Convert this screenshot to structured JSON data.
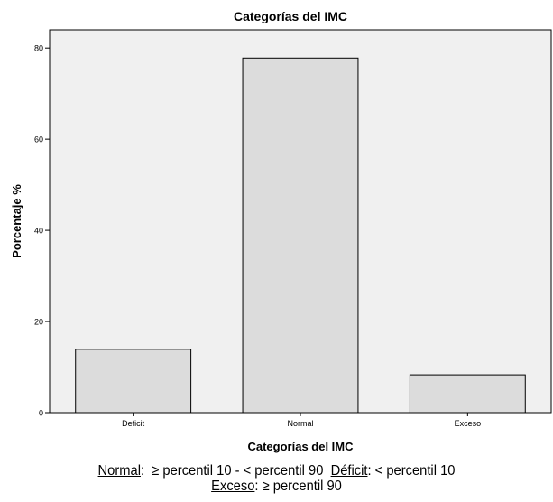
{
  "chart_data": {
    "type": "bar",
    "title": "Categorías del IMC",
    "xlabel": "Categorías del IMC",
    "ylabel": "Porcentaje %",
    "categories": [
      "Deficit",
      "Normal",
      "Exceso"
    ],
    "values": [
      13.9,
      77.8,
      8.3
    ],
    "ylim": [
      0,
      84
    ],
    "yticks": [
      0,
      20,
      40,
      60,
      80
    ],
    "grid": false,
    "colors": {
      "plot_bg": "#f0f0f0",
      "bar_fill": "#dcdcdc",
      "bar_stroke": "#000000"
    }
  },
  "caption": {
    "line1": [
      {
        "term": "Normal",
        "text": ":  ≥ percentil 10 - < percentil 90  "
      },
      {
        "term": "Déficit",
        "text": ": < percentil 10"
      }
    ],
    "line2": [
      {
        "term": "Exceso",
        "text": ": ≥ percentil 90"
      }
    ]
  }
}
